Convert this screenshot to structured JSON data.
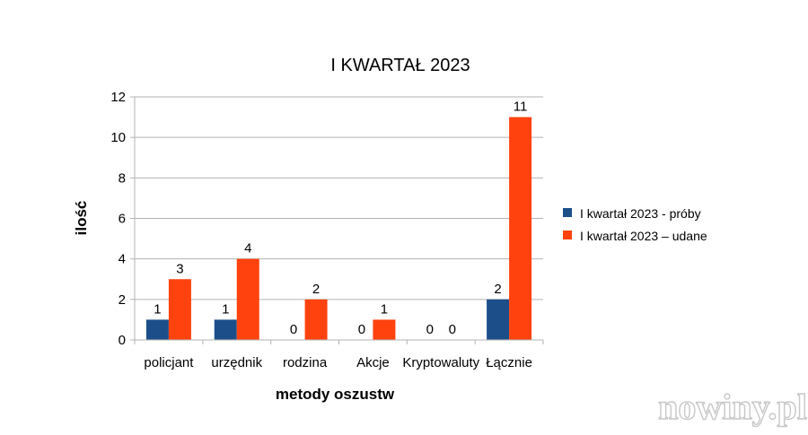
{
  "chart_data": {
    "type": "bar",
    "title": "I KWARTAŁ 2023",
    "xlabel": "metody oszustw",
    "ylabel": "ilość",
    "categories": [
      "policjant",
      "urzędnik",
      "rodzina",
      "Akcje",
      "Kryptowaluty",
      "Łącznie"
    ],
    "series": [
      {
        "name": "I kwartał 2023 - próby",
        "values": [
          1,
          1,
          0,
          0,
          0,
          2
        ],
        "color": "#1c4f8a"
      },
      {
        "name": "I kwartał 2023 – udane",
        "values": [
          3,
          4,
          2,
          1,
          0,
          11
        ],
        "color": "#ff420e"
      }
    ],
    "ylim": [
      0,
      12
    ],
    "yticks": [
      0,
      2,
      4,
      6,
      8,
      10,
      12
    ],
    "grid": true,
    "legend_position": "right"
  },
  "watermark": "nowiny.pl"
}
